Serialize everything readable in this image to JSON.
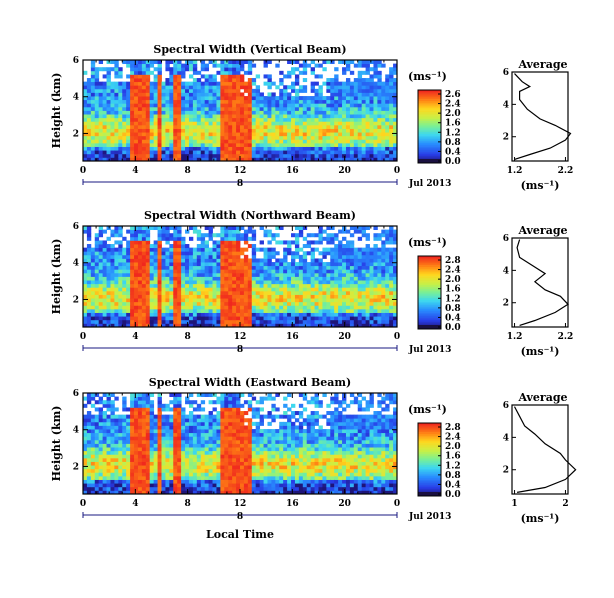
{
  "chart_data": [
    {
      "type": "heatmap",
      "title": "Spectral Width (Vertical Beam)",
      "ylabel": "Height (km)",
      "xlabel": "",
      "x_ticks": [
        "0",
        "4",
        "8",
        "12",
        "16",
        "20",
        "0"
      ],
      "y_ticks": [
        "6",
        "4",
        "2"
      ],
      "date_label": "Jul 2013",
      "day_label": "8",
      "xlim": [
        0,
        24
      ],
      "ylim": [
        0.5,
        6
      ],
      "colorbar": {
        "unit": "(ms⁻¹)",
        "ticks": [
          "2.6",
          "2.4",
          "2.0",
          "1.6",
          "1.2",
          "0.8",
          "0.4",
          "0.0"
        ]
      },
      "high_width_periods_hours": [
        [
          3.5,
          5.0
        ],
        [
          5.7,
          6.0
        ],
        [
          6.9,
          7.4
        ],
        [
          10.5,
          13.0
        ]
      ],
      "average_profile": {
        "title": "Average",
        "xlabel": "(ms⁻¹)",
        "x_ticks": [
          "1.2",
          "2.2"
        ],
        "y_ticks": [
          "6",
          "4",
          "2"
        ],
        "points": [
          [
            1.2,
            0.6
          ],
          [
            1.5,
            0.9
          ],
          [
            1.9,
            1.3
          ],
          [
            2.2,
            1.8
          ],
          [
            2.3,
            2.2
          ],
          [
            2.0,
            2.7
          ],
          [
            1.7,
            3.1
          ],
          [
            1.45,
            3.7
          ],
          [
            1.3,
            4.3
          ],
          [
            1.3,
            4.8
          ],
          [
            1.5,
            5.1
          ],
          [
            1.35,
            5.4
          ],
          [
            1.2,
            5.9
          ]
        ]
      }
    },
    {
      "type": "heatmap",
      "title": "Spectral Width (Northward Beam)",
      "ylabel": "Height (km)",
      "xlabel": "",
      "x_ticks": [
        "0",
        "4",
        "8",
        "12",
        "16",
        "20",
        "0"
      ],
      "y_ticks": [
        "6",
        "4",
        "2"
      ],
      "date_label": "Jul 2013",
      "day_label": "8",
      "xlim": [
        0,
        24
      ],
      "ylim": [
        0.5,
        6
      ],
      "colorbar": {
        "unit": "(ms⁻¹)",
        "ticks": [
          "2.8",
          "2.4",
          "2.0",
          "1.6",
          "1.2",
          "0.8",
          "0.4",
          "0.0"
        ]
      },
      "high_width_periods_hours": [
        [
          3.5,
          5.0
        ],
        [
          5.7,
          6.0
        ],
        [
          6.9,
          7.4
        ],
        [
          10.5,
          13.0
        ]
      ],
      "average_profile": {
        "title": "Average",
        "xlabel": "(ms⁻¹)",
        "x_ticks": [
          "1.2",
          "2.2"
        ],
        "y_ticks": [
          "6",
          "4",
          "2"
        ],
        "points": [
          [
            1.3,
            0.6
          ],
          [
            1.6,
            0.9
          ],
          [
            2.0,
            1.4
          ],
          [
            2.25,
            1.9
          ],
          [
            2.1,
            2.4
          ],
          [
            1.8,
            2.8
          ],
          [
            1.6,
            3.3
          ],
          [
            1.8,
            3.8
          ],
          [
            1.55,
            4.3
          ],
          [
            1.3,
            4.8
          ],
          [
            1.25,
            5.4
          ],
          [
            1.3,
            5.9
          ]
        ]
      }
    },
    {
      "type": "heatmap",
      "title": "Spectral Width (Eastward Beam)",
      "ylabel": "Height (km)",
      "xlabel": "Local Time",
      "x_ticks": [
        "0",
        "4",
        "8",
        "12",
        "16",
        "20",
        "0"
      ],
      "y_ticks": [
        "6",
        "4",
        "2"
      ],
      "date_label": "Jul 2013",
      "day_label": "8",
      "xlim": [
        0,
        24
      ],
      "ylim": [
        0.5,
        6
      ],
      "colorbar": {
        "unit": "(ms⁻¹)",
        "ticks": [
          "2.8",
          "2.4",
          "2.0",
          "1.6",
          "1.2",
          "0.8",
          "0.4",
          "0.0"
        ]
      },
      "high_width_periods_hours": [
        [
          3.5,
          5.0
        ],
        [
          5.7,
          6.0
        ],
        [
          6.9,
          7.4
        ],
        [
          10.5,
          13.0
        ]
      ],
      "average_profile": {
        "title": "Average",
        "xlabel": "(ms⁻¹)",
        "x_ticks": [
          "1",
          "2"
        ],
        "y_ticks": [
          "6",
          "4",
          "2"
        ],
        "points": [
          [
            1.05,
            0.6
          ],
          [
            1.6,
            0.9
          ],
          [
            2.0,
            1.4
          ],
          [
            2.2,
            2.0
          ],
          [
            2.0,
            2.6
          ],
          [
            1.9,
            3.0
          ],
          [
            1.6,
            3.6
          ],
          [
            1.4,
            4.2
          ],
          [
            1.2,
            4.7
          ],
          [
            1.1,
            5.3
          ],
          [
            1.0,
            5.9
          ]
        ]
      }
    }
  ]
}
